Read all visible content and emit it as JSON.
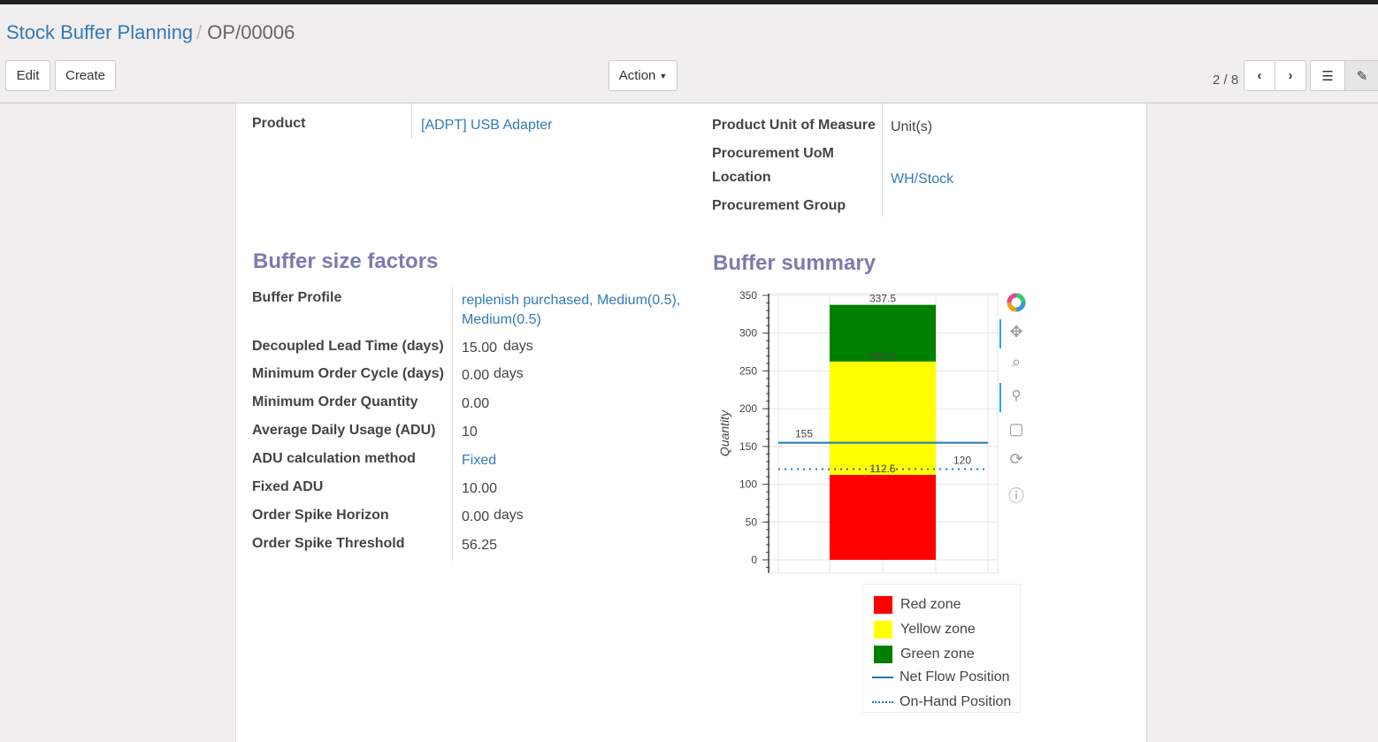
{
  "breadcrumb": {
    "parent": "Stock Buffer Planning",
    "current": "OP/00006"
  },
  "toolbar": {
    "edit": "Edit",
    "create": "Create",
    "action": "Action",
    "pager": "2 / 8"
  },
  "form": {
    "product_label": "Product",
    "product": "[ADPT] USB Adapter",
    "uom_label": "Product Unit of Measure",
    "uom": "Unit(s)",
    "proc_uom_label": "Procurement UoM",
    "location_label": "Location",
    "location": "WH/Stock",
    "proc_group_label": "Procurement Group"
  },
  "factors": {
    "title": "Buffer size factors",
    "rows": [
      {
        "label": "Buffer Profile",
        "value": "replenish purchased, Medium(0.5),",
        "value2": "Medium(0.5)"
      },
      {
        "label": "Decoupled Lead Time (days)",
        "value": "15.00",
        "unit": "days"
      },
      {
        "label": "Minimum Order Cycle (days)",
        "value": "0.00",
        "unit": "days"
      },
      {
        "label": "Minimum Order Quantity",
        "value": "0.00"
      },
      {
        "label": "Average Daily Usage (ADU)",
        "value": "10"
      },
      {
        "label": "ADU calculation method",
        "value": "Fixed"
      },
      {
        "label": "Fixed ADU",
        "value": "10.00"
      },
      {
        "label": "Order Spike Horizon",
        "value": "0.00",
        "unit": "days"
      },
      {
        "label": "Order Spike Threshold",
        "value": "56.25"
      }
    ]
  },
  "summary": {
    "title": "Buffer summary"
  },
  "chart_data": {
    "type": "bar",
    "ylabel": "Quantity",
    "ylim": [
      0,
      350
    ],
    "yticks": [
      0,
      50,
      100,
      150,
      200,
      250,
      300,
      350
    ],
    "grid": true,
    "stacked_segments": [
      {
        "name": "Red zone",
        "from": 0,
        "to": 112.5,
        "color": "#ff0000"
      },
      {
        "name": "Yellow zone",
        "from": 112.5,
        "to": 262.5,
        "color": "#ffff00"
      },
      {
        "name": "Green zone",
        "from": 262.5,
        "to": 337.5,
        "color": "#008000"
      }
    ],
    "data_labels": [
      "337.5",
      "262.5",
      "112.5"
    ],
    "lines": [
      {
        "name": "Net Flow Position",
        "value": 155,
        "label": "155",
        "style": "solid",
        "color": "#1f77b4"
      },
      {
        "name": "On-Hand Position",
        "value": 120,
        "label": "120",
        "style": "dotted",
        "color": "#1f77b4"
      }
    ],
    "legend_placement": "bottom-right"
  }
}
